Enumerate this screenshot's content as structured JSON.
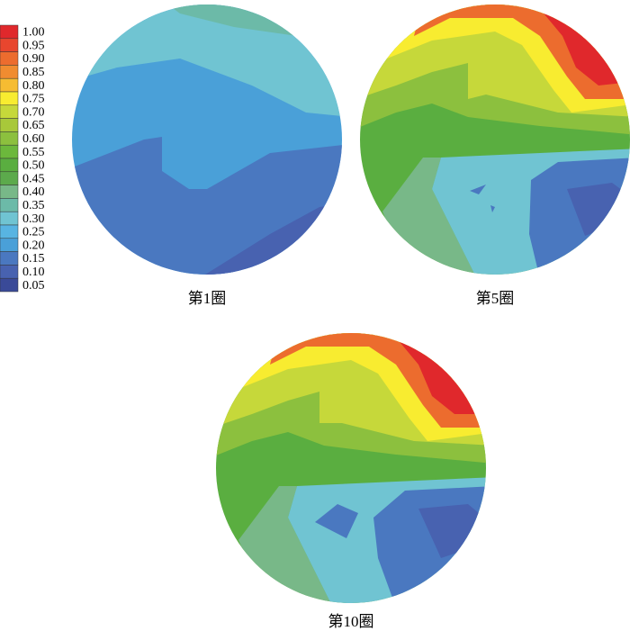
{
  "colorbar": {
    "ticks": [
      {
        "value": 1.0,
        "label": "1.00"
      },
      0.95,
      {
        "value": 0.9,
        "label": "0.90"
      },
      0.85,
      {
        "value": 0.8,
        "label": "0.80"
      },
      0.75,
      {
        "value": 0.7,
        "label": "0.70"
      },
      0.65,
      {
        "value": 0.6,
        "label": "0.60"
      },
      0.55,
      {
        "value": 0.5,
        "label": "0.50"
      },
      0.45,
      {
        "value": 0.4,
        "label": "0.40"
      },
      0.35,
      {
        "value": 0.3,
        "label": "0.30"
      },
      0.25,
      {
        "value": 0.2,
        "label": "0.20"
      },
      0.15,
      {
        "value": 0.1,
        "label": "0.10"
      },
      0.05
    ],
    "colors": [
      "#e0282c",
      "#e8462e",
      "#ec6c2e",
      "#f08c30",
      "#f6bc32",
      "#f8ec30",
      "#c6d83a",
      "#a8c83a",
      "#8cc03e",
      "#6cb83c",
      "#5aae40",
      "#5caa4c",
      "#78b888",
      "#6cbaa8",
      "#70c4d2",
      "#58b4e2",
      "#4aa0d8",
      "#4a78c0",
      "#4862b0",
      "#3a4a98"
    ]
  },
  "panels": [
    {
      "caption": "第1圈"
    },
    {
      "caption": "第5圈"
    },
    {
      "caption": "第10圈"
    }
  ]
}
